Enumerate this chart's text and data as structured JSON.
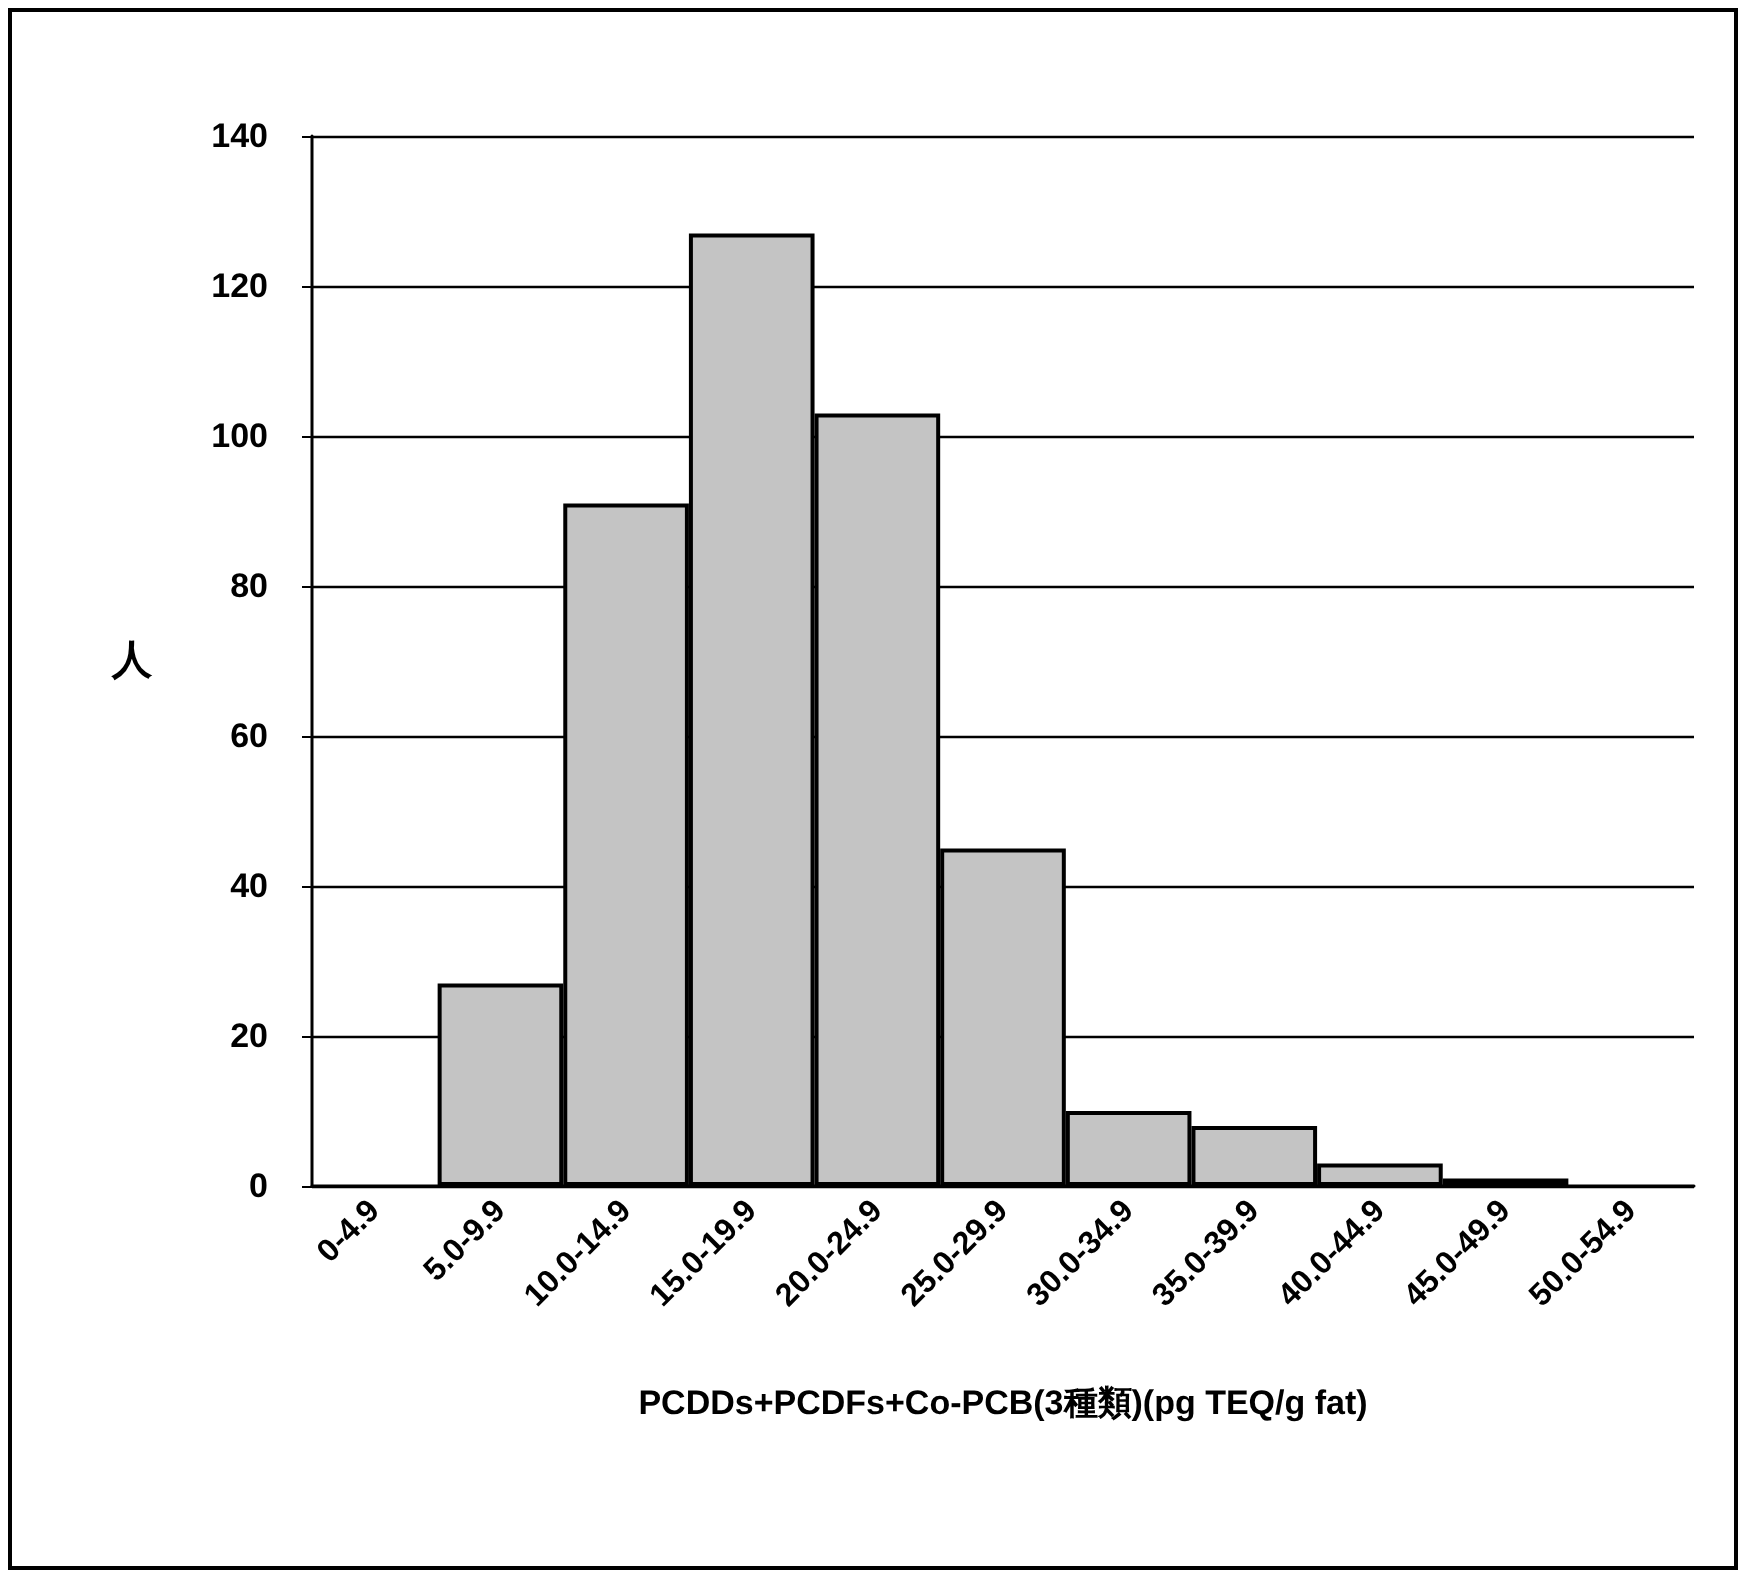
{
  "chart_data": {
    "type": "bar",
    "categories": [
      "0-4.9",
      "5.0-9.9",
      "10.0-14.9",
      "15.0-19.9",
      "20.0-24.9",
      "25.0-29.9",
      "30.0-34.9",
      "35.0-39.9",
      "40.0-44.9",
      "45.0-49.9",
      "50.0-54.9"
    ],
    "values": [
      0,
      27,
      91,
      127,
      103,
      45,
      10,
      8,
      3,
      1,
      0
    ],
    "color": "#c4c4c4",
    "xlabel": "PCDDs+PCDFs+Co-PCB(3種類)(pg TEQ/g fat)",
    "ylabel": "人",
    "ylim": [
      0,
      140
    ],
    "yticks": [
      0,
      20,
      40,
      60,
      80,
      100,
      120,
      140
    ],
    "grid": "y"
  }
}
